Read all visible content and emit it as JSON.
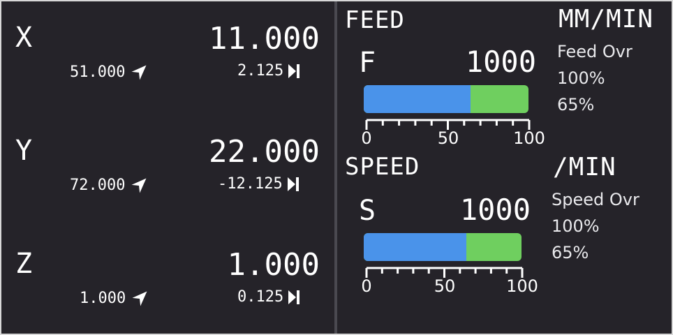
{
  "colors": {
    "background": "#252329",
    "bar_base": "#6fcf5f",
    "bar_fill": "#4a93ea",
    "divider": "#4a4950"
  },
  "axes": [
    {
      "letter": "X",
      "value": "11.000",
      "machine": "51.000",
      "distance": "2.125"
    },
    {
      "letter": "Y",
      "value": "22.000",
      "machine": "72.000",
      "distance": "-12.125"
    },
    {
      "letter": "Z",
      "value": "1.000",
      "machine": "1.000",
      "distance": "0.125"
    }
  ],
  "icons": {
    "machine": "navigation-arrow-icon",
    "distance": "skip-to-end-icon"
  },
  "feed": {
    "title": "FEED",
    "unit": "MM/MIN",
    "letter": "F",
    "value": "1000",
    "override_label": "Feed Ovr",
    "override_value": "100%",
    "secondary_value": "65%",
    "bar_fraction": 0.65,
    "scale_labels": [
      "0",
      "50",
      "100"
    ]
  },
  "speed": {
    "title": "SPEED",
    "unit": "/MIN",
    "letter": "S",
    "value": "1000",
    "override_label": "Speed Ovr",
    "override_value": "100%",
    "secondary_value": "65%",
    "bar_fraction": 0.65,
    "scale_labels": [
      "0",
      "50",
      "100"
    ]
  }
}
